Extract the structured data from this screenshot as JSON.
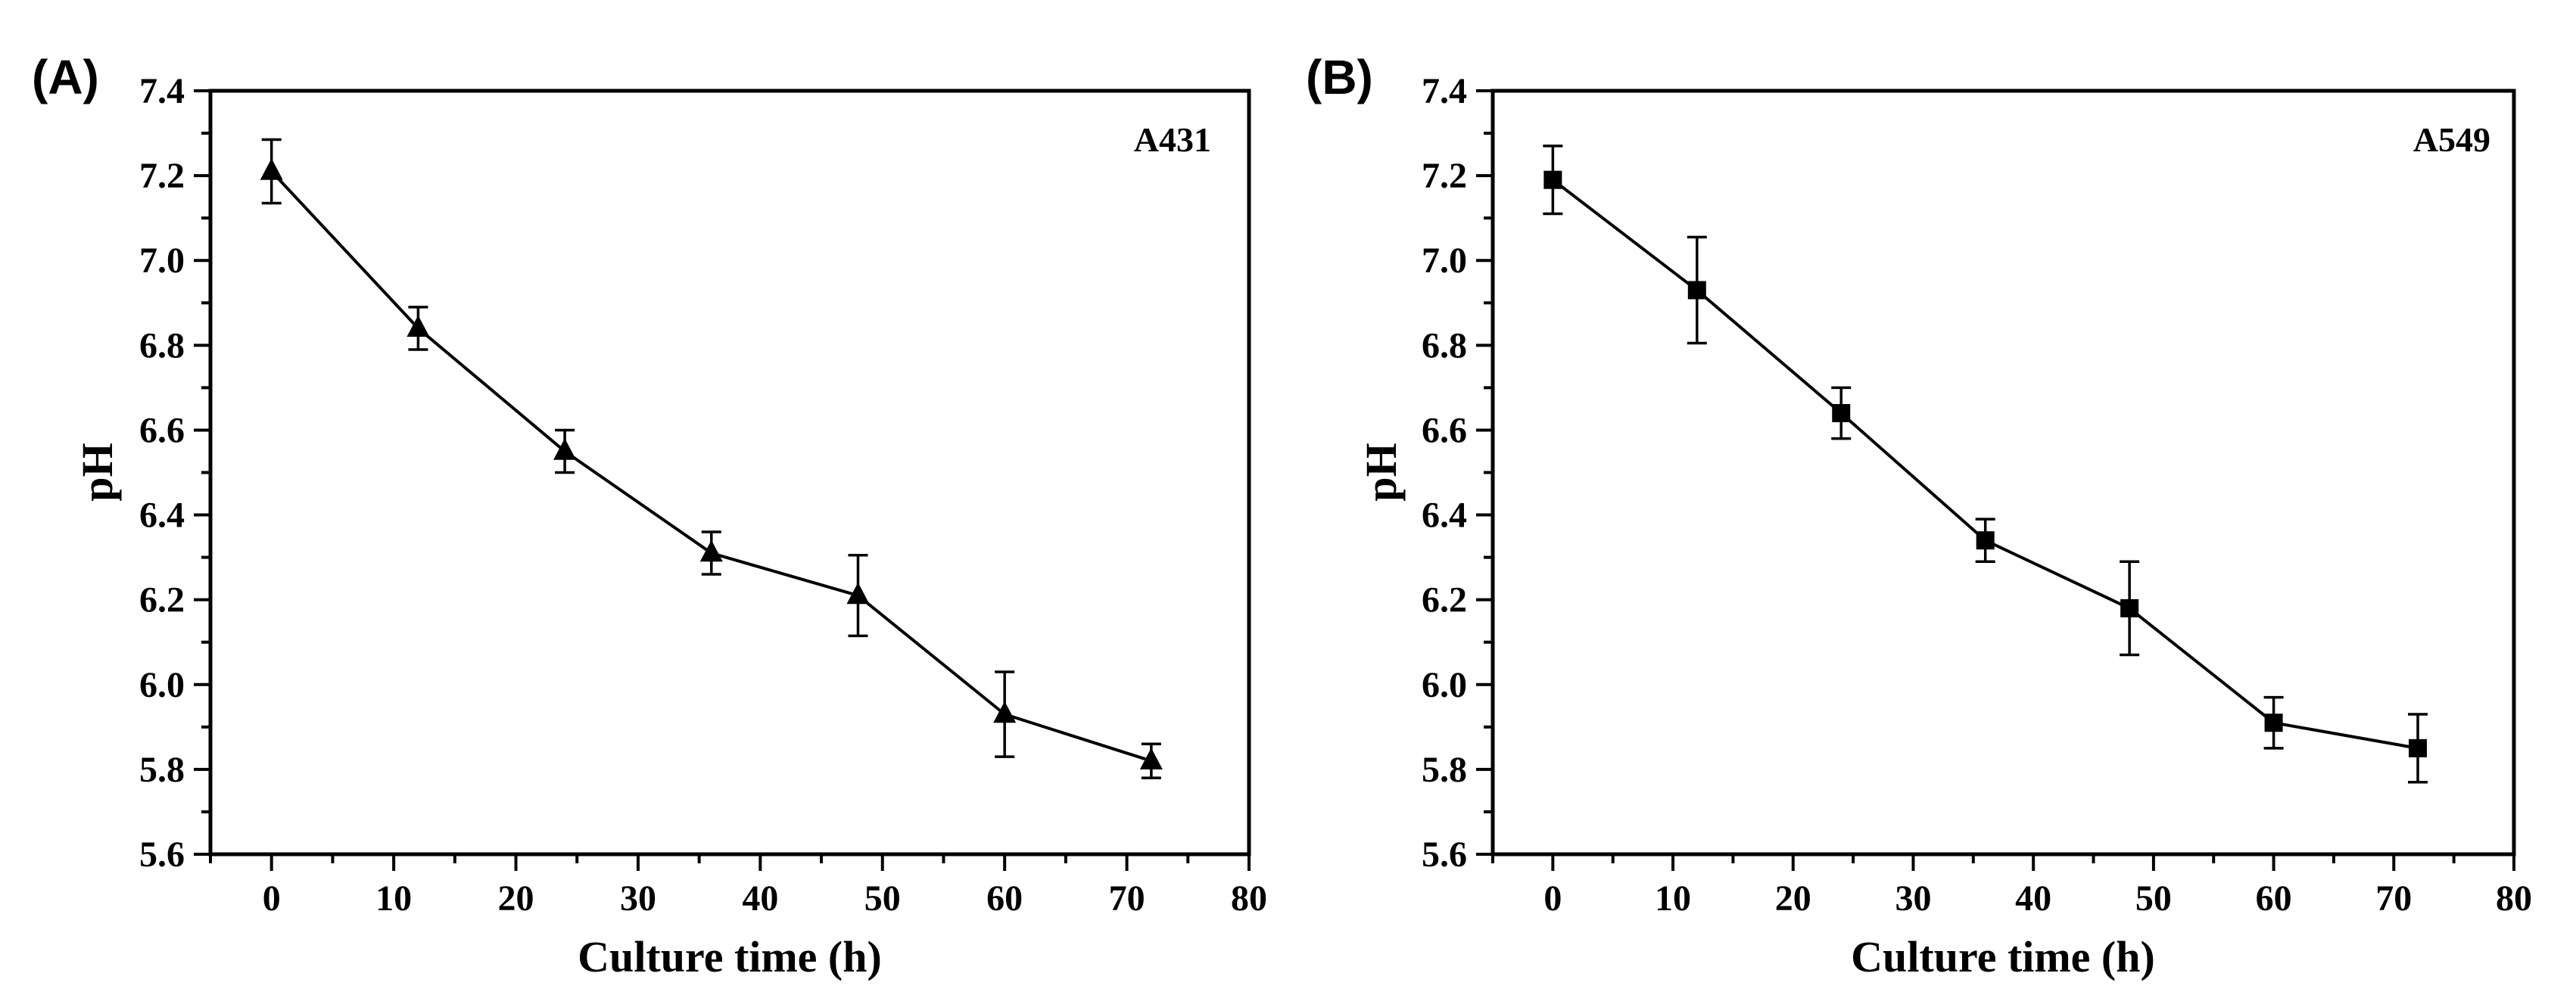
{
  "chart_data": [
    {
      "type": "line",
      "panel_label": "(A)",
      "series_label": "A431",
      "marker": "triangle",
      "xlabel": "Culture time (h)",
      "ylabel": "pH",
      "xlim": [
        -5,
        80
      ],
      "ylim": [
        5.6,
        7.4
      ],
      "xticks": [
        0,
        10,
        20,
        30,
        40,
        50,
        60,
        70,
        80
      ],
      "yticks": [
        5.6,
        5.8,
        6.0,
        6.2,
        6.4,
        6.6,
        6.8,
        7.0,
        7.2,
        7.4
      ],
      "x": [
        0,
        12,
        24,
        36,
        48,
        60,
        72
      ],
      "y": [
        7.21,
        6.84,
        6.55,
        6.31,
        6.21,
        5.93,
        5.82
      ],
      "err": [
        0.075,
        0.05,
        0.05,
        0.05,
        0.095,
        0.1,
        0.04
      ]
    },
    {
      "type": "line",
      "panel_label": "(B)",
      "series_label": "A549",
      "marker": "square",
      "xlabel": "Culture time (h)",
      "ylabel": "pH",
      "xlim": [
        -5,
        80
      ],
      "ylim": [
        5.6,
        7.4
      ],
      "xticks": [
        0,
        10,
        20,
        30,
        40,
        50,
        60,
        70,
        80
      ],
      "yticks": [
        5.6,
        5.8,
        6.0,
        6.2,
        6.4,
        6.6,
        6.8,
        7.0,
        7.2,
        7.4
      ],
      "x": [
        0,
        12,
        24,
        36,
        48,
        60,
        72
      ],
      "y": [
        7.19,
        6.93,
        6.64,
        6.34,
        6.18,
        5.91,
        5.85
      ],
      "err": [
        0.08,
        0.125,
        0.06,
        0.05,
        0.11,
        0.06,
        0.08
      ]
    }
  ]
}
